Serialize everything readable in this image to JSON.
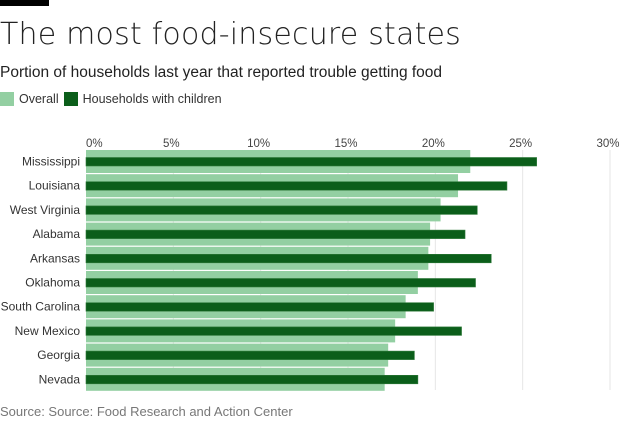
{
  "header": {
    "title": "The most food-insecure states",
    "subtitle": "Portion of households last year that reported trouble getting food"
  },
  "legend": [
    {
      "label": "Overall",
      "color": "#93cfa2"
    },
    {
      "label": "Households with children",
      "color": "#0b5e1a"
    }
  ],
  "source": "Source: Source: Food Research and Action Center",
  "chart_data": {
    "type": "bar",
    "orientation": "horizontal",
    "title": "The most food-insecure states",
    "subtitle": "Portion of households last year that reported trouble getting food",
    "xlabel": "",
    "ylabel": "",
    "xlim": [
      0,
      30
    ],
    "xticks": [
      0,
      5,
      10,
      15,
      20,
      25,
      30
    ],
    "xtick_labels": [
      "0%",
      "5%",
      "10%",
      "15%",
      "20%",
      "25%",
      "30%"
    ],
    "grid": true,
    "legend_position": "top-left",
    "categories": [
      "Mississippi",
      "Louisiana",
      "West Virginia",
      "Alabama",
      "Arkansas",
      "Oklahoma",
      "South Carolina",
      "New Mexico",
      "Georgia",
      "Nevada"
    ],
    "series": [
      {
        "name": "Overall",
        "color": "#93cfa2",
        "values": [
          22.0,
          21.3,
          20.3,
          19.7,
          19.6,
          19.0,
          18.3,
          17.7,
          17.3,
          17.1
        ]
      },
      {
        "name": "Households with children",
        "color": "#0b5e1a",
        "values": [
          25.8,
          24.1,
          22.4,
          21.7,
          23.2,
          22.3,
          19.9,
          21.5,
          18.8,
          19.0
        ]
      }
    ]
  }
}
